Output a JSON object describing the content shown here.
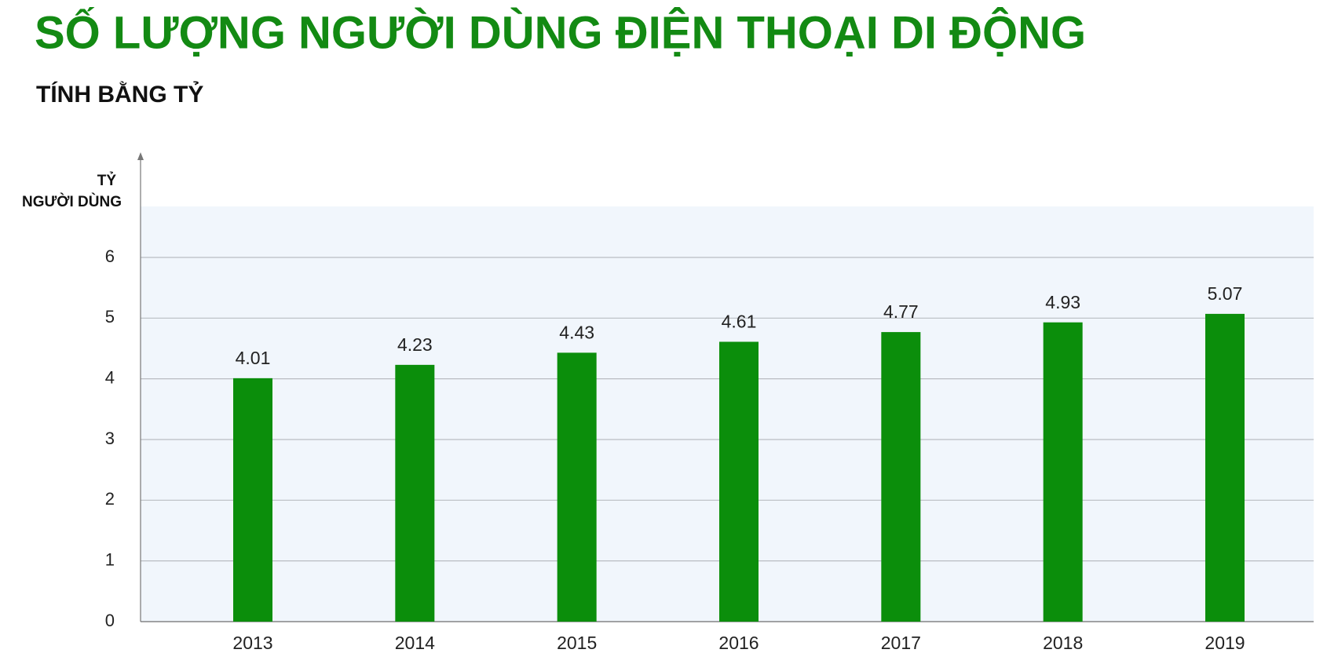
{
  "chart_data": {
    "type": "bar",
    "title": "SỐ LƯỢNG NGƯỜI DÙNG ĐIỆN THOẠI DI ĐỘNG",
    "subtitle": "TÍNH BẰNG TỶ",
    "ylabel": [
      "TỶ",
      "NGƯỜI DÙNG"
    ],
    "categories": [
      "2013",
      "2014",
      "2015",
      "2016",
      "2017",
      "2018",
      "2019"
    ],
    "values": [
      4.01,
      4.23,
      4.43,
      4.61,
      4.77,
      4.93,
      5.07
    ],
    "color": "#0b8e0b",
    "ylim": [
      0,
      6.84
    ],
    "yticks": [
      0,
      1,
      2,
      3,
      4,
      5,
      6
    ],
    "grid": true
  }
}
